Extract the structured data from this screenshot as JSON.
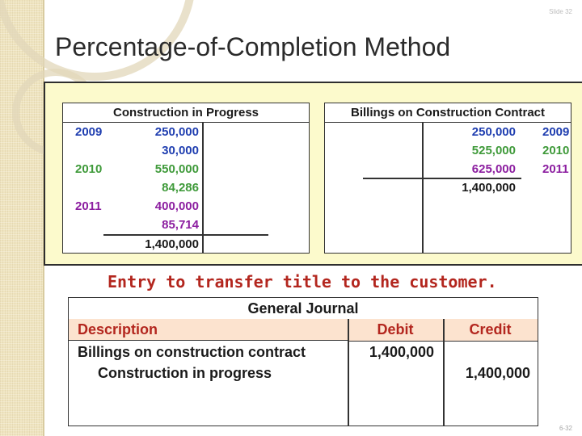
{
  "slide": {
    "number_top": "Slide 32",
    "number_bottom": "6-32",
    "title": "Percentage-of-Completion Method"
  },
  "cip_account": {
    "title": "Construction in Progress",
    "rows": [
      {
        "year": "2009",
        "amount": "250,000",
        "color": "#1f3eb0"
      },
      {
        "year": "",
        "amount": "30,000",
        "color": "#1f3eb0"
      },
      {
        "year": "2010",
        "amount": "550,000",
        "color": "#3f9a3a"
      },
      {
        "year": "",
        "amount": "84,286",
        "color": "#3f9a3a"
      },
      {
        "year": "2011",
        "amount": "400,000",
        "color": "#8c1ea0"
      },
      {
        "year": "",
        "amount": "85,714",
        "color": "#8c1ea0"
      }
    ],
    "total": "1,400,000"
  },
  "billings_account": {
    "title": "Billings on Construction Contract",
    "rows": [
      {
        "amount": "250,000",
        "year": "2009",
        "color": "#1f3eb0"
      },
      {
        "amount": "525,000",
        "year": "2010",
        "color": "#3f9a3a"
      },
      {
        "amount": "625,000",
        "year": "2011",
        "color": "#8c1ea0"
      }
    ],
    "total": "1,400,000"
  },
  "entry_caption": "Entry to transfer title to the customer.",
  "journal": {
    "title": "General Journal",
    "headers": {
      "description": "Description",
      "debit": "Debit",
      "credit": "Credit"
    },
    "entries": [
      {
        "description": "Billings on construction contract",
        "debit": "1,400,000",
        "credit": ""
      },
      {
        "description": "Construction in progress",
        "debit": "",
        "credit": "1,400,000"
      }
    ]
  },
  "colors": {
    "panel_background": "#fcfacc",
    "header_background": "#fce3cf",
    "caption": "#b3261e"
  }
}
